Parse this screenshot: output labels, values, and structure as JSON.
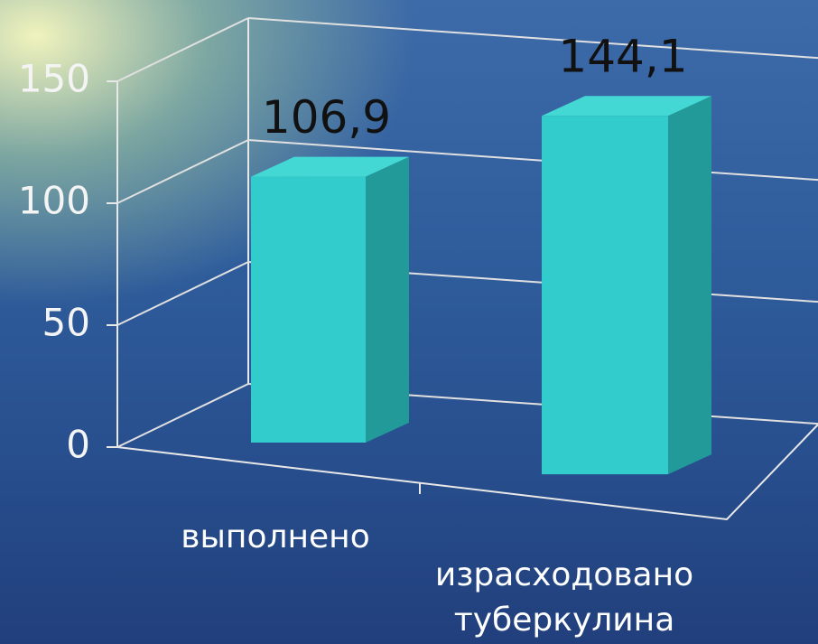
{
  "chart_data": {
    "type": "bar3d",
    "categories": [
      "выполнено",
      "израсходовано туберкулина"
    ],
    "values": [
      106.9,
      144.1
    ],
    "value_labels": [
      "106,9",
      "144,1"
    ],
    "color": "#33cccc",
    "ylim": [
      0,
      150
    ],
    "yticks": [
      0,
      50,
      100,
      150
    ],
    "grid": true
  }
}
